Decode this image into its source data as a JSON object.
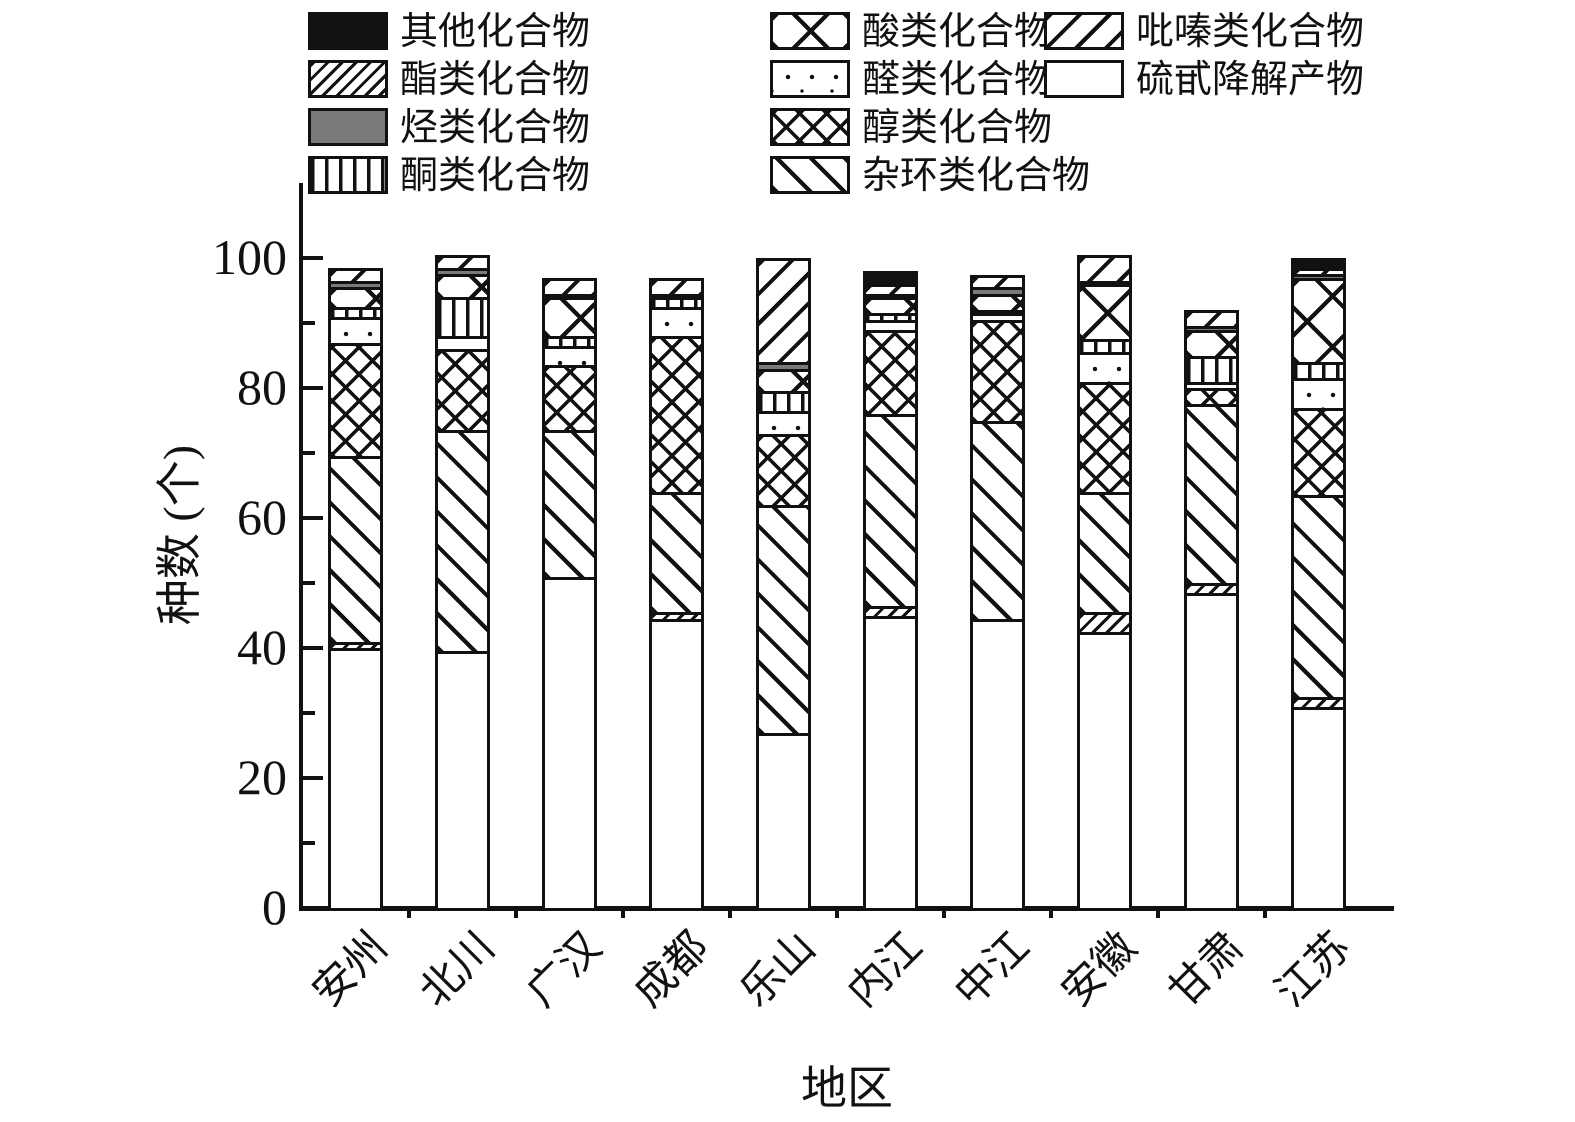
{
  "chart_data": {
    "type": "bar",
    "stacked": true,
    "title": "",
    "xlabel": "地区",
    "ylabel": "种数 (个)",
    "ylim": [
      0,
      110
    ],
    "yticks_major": [
      0,
      20,
      40,
      60,
      80,
      100
    ],
    "yticks_minor": [
      10,
      30,
      50,
      70,
      90
    ],
    "grid": false,
    "legend_position": "top",
    "categories": [
      "安州",
      "北川",
      "广汉",
      "成都",
      "乐山",
      "内江",
      "中江",
      "安徽",
      "甘肃",
      "江苏"
    ],
    "series": [
      {
        "name": "硫甙降解产物",
        "pattern": "plain-white",
        "values": [
          40,
          39.5,
          51,
          44.5,
          27,
          45,
          44.5,
          42.5,
          48.5,
          31
        ]
      },
      {
        "name": "酯类化合物",
        "pattern": "diag-forward-dense",
        "values": [
          1,
          0,
          0,
          1,
          0,
          1.5,
          0,
          3,
          1.5,
          1.5
        ]
      },
      {
        "name": "杂环类化合物",
        "pattern": "diag-back",
        "values": [
          28.5,
          34,
          22.5,
          18.5,
          35,
          29.5,
          30.5,
          18.5,
          27.5,
          31
        ]
      },
      {
        "name": "醇类化合物",
        "pattern": "crosshatch-dense",
        "values": [
          17.5,
          12.5,
          10,
          24,
          11,
          13,
          15.5,
          17,
          2.5,
          13.5
        ]
      },
      {
        "name": "醛类化合物",
        "pattern": "dots",
        "values": [
          4,
          2,
          3,
          4.5,
          3.5,
          1.5,
          1,
          4.5,
          1,
          4.5
        ]
      },
      {
        "name": "酮类化合物",
        "pattern": "vertical-lines",
        "values": [
          1.5,
          6,
          1.5,
          1.5,
          3,
          1,
          0.5,
          2,
          4,
          2.5
        ]
      },
      {
        "name": "酸类化合物",
        "pattern": "crosshatch-open",
        "values": [
          3,
          3.5,
          6,
          0,
          3.5,
          2.5,
          2.5,
          8.5,
          4,
          13
        ]
      },
      {
        "name": "烃类化合物",
        "pattern": "solid-gray",
        "values": [
          1,
          1,
          0.5,
          0.5,
          1,
          0.5,
          1,
          0.5,
          0.5,
          0.5
        ]
      },
      {
        "name": "吡嗪类化合物",
        "pattern": "diag-forward-sparse",
        "values": [
          1.5,
          1.5,
          2,
          2,
          15.5,
          1.5,
          1.5,
          3.5,
          2,
          1
        ]
      },
      {
        "name": "其他化合物",
        "pattern": "solid-black",
        "values": [
          0,
          0,
          0,
          0,
          0,
          1.5,
          0,
          0,
          0,
          1
        ]
      }
    ],
    "legend_order": [
      "其他化合物",
      "酸类化合物",
      "吡嗪类化合物",
      "酯类化合物",
      "醛类化合物",
      "硫甙降解产物",
      "烃类化合物",
      "醇类化合物",
      "酮类化合物",
      "杂环类化合物"
    ]
  },
  "colors": {
    "ink": "#111111",
    "gray_fill": "#7a7a7a",
    "background": "#ffffff"
  }
}
